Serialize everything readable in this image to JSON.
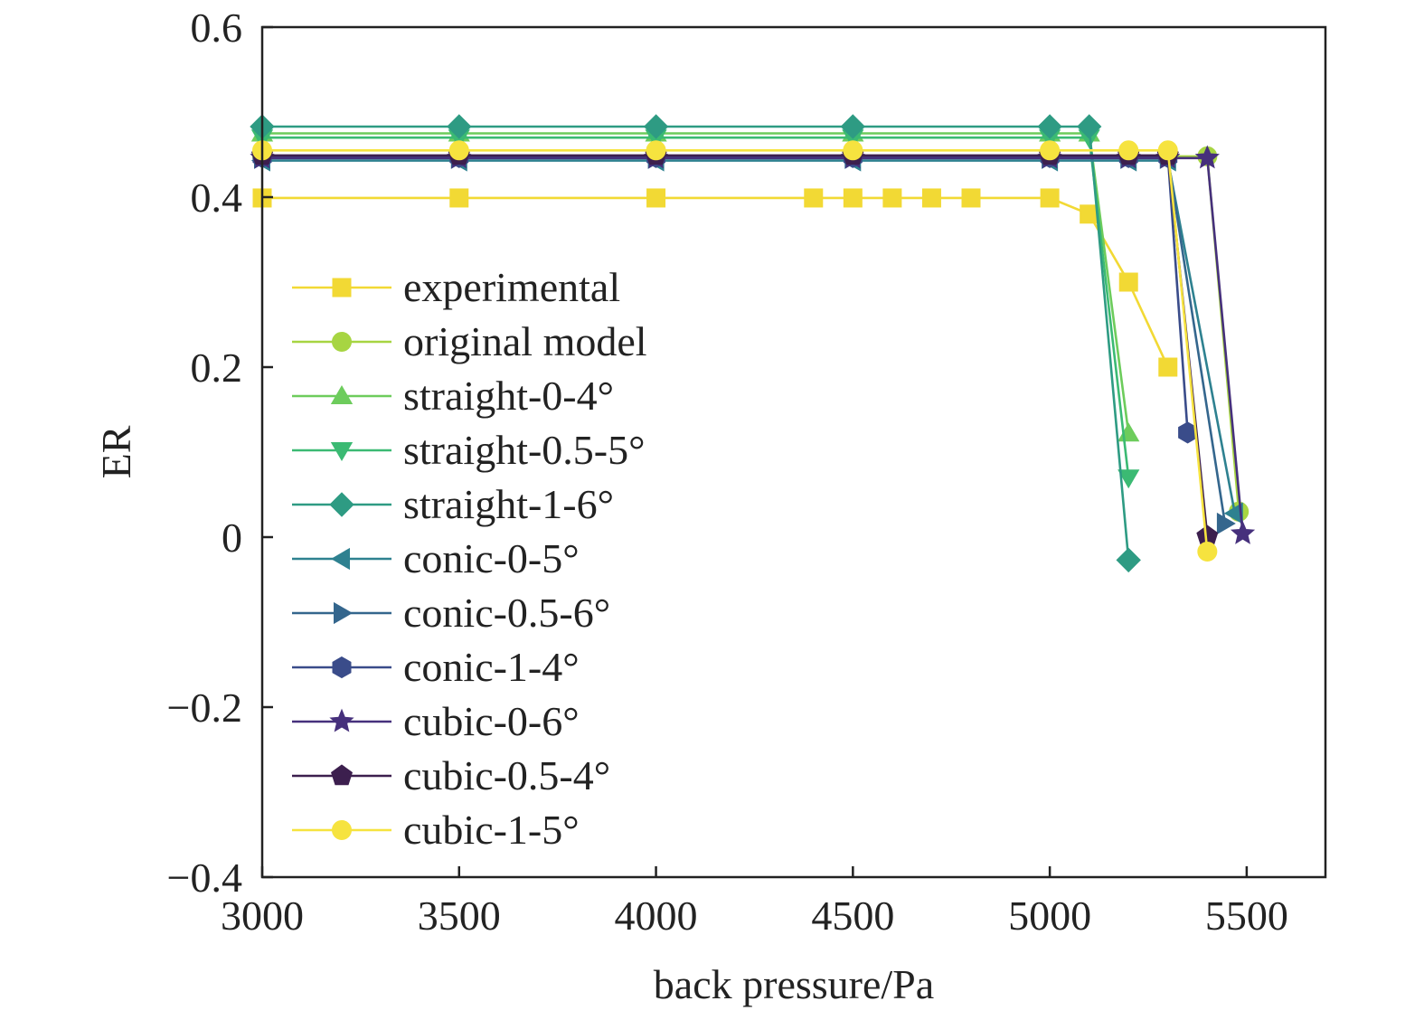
{
  "chart_data": {
    "type": "line",
    "xlabel": "back pressure/Pa",
    "ylabel": "ER",
    "xlim": [
      3000,
      5700
    ],
    "ylim": [
      -0.4,
      0.6
    ],
    "xticks": [
      3000,
      3500,
      4000,
      4500,
      5000,
      5500
    ],
    "yticks": [
      -0.4,
      -0.2,
      0,
      0.2,
      0.4,
      0.6
    ],
    "xtick_labels": [
      "3000",
      "3500",
      "4000",
      "4500",
      "5000",
      "5500"
    ],
    "ytick_labels": [
      "−0.4",
      "−0.2",
      "0",
      "0.2",
      "0.4",
      "0.6"
    ],
    "grid": false,
    "legend_position": "center-left",
    "series": [
      {
        "name": "experimental",
        "marker": "square",
        "color": "#f2d934",
        "x": [
          3000,
          3500,
          4000,
          4400,
          4500,
          4600,
          4700,
          4800,
          5000,
          5100,
          5200,
          5300
        ],
        "y": [
          0.399,
          0.399,
          0.399,
          0.399,
          0.399,
          0.399,
          0.399,
          0.399,
          0.399,
          0.38,
          0.3,
          0.2
        ]
      },
      {
        "name": "original model",
        "marker": "circle",
        "color": "#a7d542",
        "x": [
          3000,
          3500,
          4000,
          4500,
          5000,
          5200,
          5300,
          5400,
          5480
        ],
        "y": [
          0.448,
          0.448,
          0.448,
          0.448,
          0.448,
          0.448,
          0.448,
          0.448,
          0.03
        ]
      },
      {
        "name": "straight-0-4°",
        "marker": "triangle-up",
        "color": "#6dcc5c",
        "x": [
          3000,
          3500,
          4000,
          4500,
          5000,
          5100,
          5200
        ],
        "y": [
          0.475,
          0.475,
          0.475,
          0.475,
          0.475,
          0.475,
          0.122
        ]
      },
      {
        "name": "straight-0.5-5°",
        "marker": "triangle-down",
        "color": "#3bba73",
        "x": [
          3000,
          3500,
          4000,
          4500,
          5000,
          5100,
          5200
        ],
        "y": [
          0.47,
          0.47,
          0.47,
          0.47,
          0.47,
          0.47,
          0.07
        ]
      },
      {
        "name": "straight-1-6°",
        "marker": "diamond",
        "color": "#2e9b83",
        "x": [
          3000,
          3500,
          4000,
          4500,
          5000,
          5100,
          5200
        ],
        "y": [
          0.483,
          0.483,
          0.483,
          0.483,
          0.483,
          0.483,
          -0.027
        ]
      },
      {
        "name": "conic-0-5°",
        "marker": "triangle-left",
        "color": "#2e8190",
        "x": [
          3000,
          3500,
          4000,
          4500,
          5000,
          5200,
          5300,
          5470
        ],
        "y": [
          0.443,
          0.443,
          0.443,
          0.443,
          0.443,
          0.443,
          0.443,
          0.028
        ]
      },
      {
        "name": "conic-0.5-6°",
        "marker": "triangle-right",
        "color": "#34668d",
        "x": [
          3000,
          3500,
          4000,
          4500,
          5000,
          5200,
          5300,
          5445
        ],
        "y": [
          0.446,
          0.446,
          0.446,
          0.446,
          0.446,
          0.446,
          0.446,
          0.016
        ]
      },
      {
        "name": "conic-1-4°",
        "marker": "hexagon",
        "color": "#3a4c8a",
        "x": [
          3000,
          3500,
          4000,
          4500,
          5000,
          5200,
          5300,
          5350
        ],
        "y": [
          0.447,
          0.447,
          0.447,
          0.447,
          0.447,
          0.447,
          0.447,
          0.123
        ]
      },
      {
        "name": "cubic-0-6°",
        "marker": "star",
        "color": "#46307c",
        "x": [
          3000,
          3500,
          4000,
          4500,
          5000,
          5200,
          5300,
          5400,
          5490
        ],
        "y": [
          0.446,
          0.446,
          0.446,
          0.446,
          0.446,
          0.446,
          0.446,
          0.446,
          0.004
        ]
      },
      {
        "name": "cubic-0.5-4°",
        "marker": "pentagon",
        "color": "#3c1f4e",
        "x": [
          3000,
          3500,
          4000,
          4500,
          5000,
          5200,
          5300,
          5400
        ],
        "y": [
          0.449,
          0.449,
          0.449,
          0.449,
          0.449,
          0.449,
          0.449,
          0.001
        ]
      },
      {
        "name": "cubic-1-5°",
        "marker": "circle",
        "color": "#f6e33f",
        "x": [
          3000,
          3500,
          4000,
          4500,
          5000,
          5200,
          5300,
          5400
        ],
        "y": [
          0.455,
          0.455,
          0.455,
          0.455,
          0.455,
          0.455,
          0.455,
          -0.017
        ]
      }
    ]
  }
}
